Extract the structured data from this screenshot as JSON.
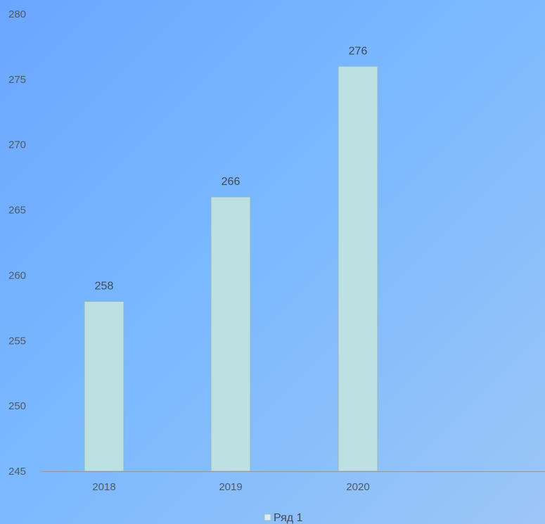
{
  "chart_data": {
    "type": "bar",
    "title": "",
    "xlabel": "",
    "ylabel": "",
    "categories": [
      "2018",
      "2019",
      "2020"
    ],
    "series": [
      {
        "name": "Ряд 1",
        "values": [
          258,
          266,
          276
        ],
        "color": "#bde0e3"
      }
    ],
    "ylim": [
      245,
      280
    ],
    "yticks": [
      245,
      250,
      255,
      260,
      265,
      270,
      275,
      280
    ],
    "data_labels": true,
    "grid": false,
    "legend_position": "bottom-center",
    "colors": {
      "bar_fill": "#bde0e3",
      "bar_stroke": "#93b7c0",
      "axis_line": "#8a9aa8",
      "tick_text": "#4d5a6b",
      "label_text": "#3f4a58",
      "legend_swatch": "#d8eef3"
    }
  }
}
